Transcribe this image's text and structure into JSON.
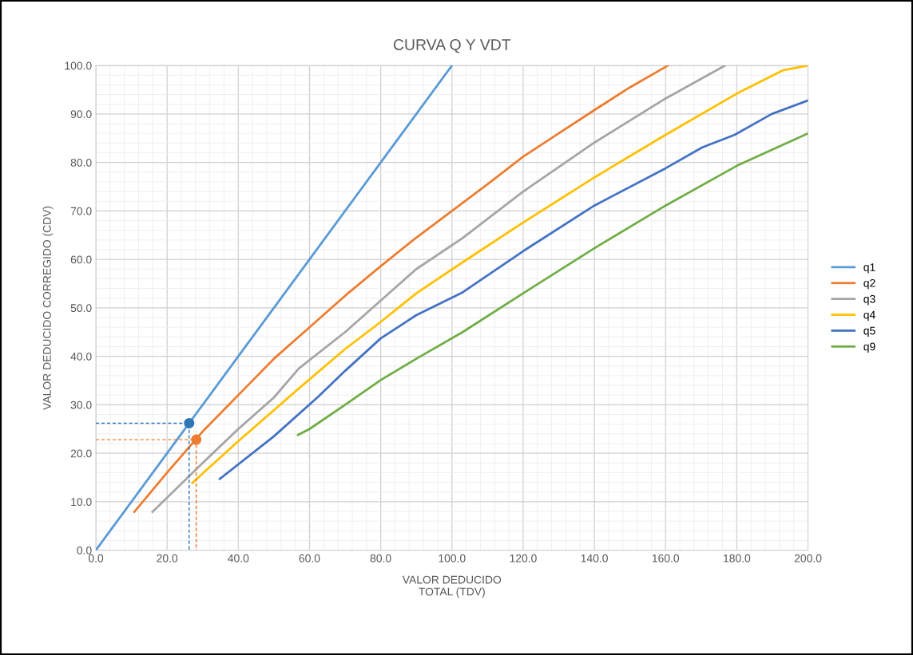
{
  "chart_data": {
    "type": "line",
    "title": "CURVA Q Y VDT",
    "xlabel": "VALOR DEDUCIDO\nTOTAL (TDV)",
    "ylabel": "VALOR DEDUCIDO CORREGIDO (CDV)",
    "xlim": [
      0,
      200
    ],
    "ylim": [
      0,
      100
    ],
    "xticks": [
      {
        "value": 0,
        "label": "0.0"
      },
      {
        "value": 20,
        "label": "20.0"
      },
      {
        "value": 40,
        "label": "40.0"
      },
      {
        "value": 60,
        "label": "60.0"
      },
      {
        "value": 80,
        "label": "80.0"
      },
      {
        "value": 100,
        "label": "100.0"
      },
      {
        "value": 120,
        "label": "120.0"
      },
      {
        "value": 140,
        "label": "140.0"
      },
      {
        "value": 160,
        "label": "160.0"
      },
      {
        "value": 180,
        "label": "180.0"
      },
      {
        "value": 200,
        "label": "200.0"
      }
    ],
    "yticks": [
      {
        "value": 0,
        "label": "0.0"
      },
      {
        "value": 10,
        "label": "10.0"
      },
      {
        "value": 20,
        "label": "20.0"
      },
      {
        "value": 30,
        "label": "30.0"
      },
      {
        "value": 40,
        "label": "40.0"
      },
      {
        "value": 50,
        "label": "50.0"
      },
      {
        "value": 60,
        "label": "60.0"
      },
      {
        "value": 70,
        "label": "70.0"
      },
      {
        "value": 80,
        "label": "80.0"
      },
      {
        "value": 90,
        "label": "90.0"
      },
      {
        "value": 100,
        "label": "100.0"
      }
    ],
    "grid": true,
    "legend": "right",
    "marker": "none",
    "line_style": "solid",
    "series": [
      {
        "name": "q1",
        "color": "#5b9bd5",
        "x": [
          0,
          20,
          40,
          60,
          80,
          100
        ],
        "values": [
          0,
          20,
          40,
          60,
          80,
          100
        ]
      },
      {
        "name": "q2",
        "color": "#ed7d31",
        "x": [
          10.8,
          20,
          30,
          42,
          50,
          60,
          70,
          80,
          90,
          100,
          110,
          120,
          130,
          140,
          150,
          160.7
        ],
        "values": [
          7.9,
          16,
          24.5,
          33.5,
          39.5,
          46,
          52.5,
          58.6,
          64.5,
          70,
          75.5,
          81.2,
          86,
          90.8,
          95.5,
          100
        ]
      },
      {
        "name": "q3",
        "color": "#a5a5a5",
        "x": [
          15.9,
          30,
          40,
          50,
          57,
          70,
          80,
          90,
          103,
          120,
          140,
          160,
          176.7
        ],
        "values": [
          7.9,
          18,
          25,
          31.5,
          37.5,
          45,
          51.5,
          58,
          64.4,
          74,
          84.1,
          93.2,
          100
        ]
      },
      {
        "name": "q4",
        "color": "#ffc000",
        "x": [
          27.1,
          40,
          57.2,
          70,
          80,
          90,
          103,
          120,
          140,
          160,
          180,
          192.9,
          200
        ],
        "values": [
          13.9,
          22.5,
          33.5,
          41.5,
          47.1,
          53,
          59.4,
          67.6,
          76.9,
          85.7,
          94.2,
          99,
          100
        ]
      },
      {
        "name": "q5",
        "color": "#4472c4",
        "x": [
          34.8,
          50,
          62.5,
          70,
          80,
          90,
          103,
          120,
          140,
          160,
          170.3,
          179.4,
          189.8,
          200
        ],
        "values": [
          14.7,
          23.5,
          31.7,
          37,
          43.7,
          48.5,
          53.2,
          61.7,
          71.1,
          78.8,
          83.1,
          85.7,
          90,
          92.8
        ]
      },
      {
        "name": "q9",
        "color": "#70ad47",
        "x": [
          56.8,
          60,
          70,
          80,
          90,
          103,
          120,
          140,
          160,
          180,
          200
        ],
        "values": [
          23.8,
          25,
          30,
          35.1,
          39.5,
          45,
          53,
          62.3,
          71.1,
          79.3,
          86
        ]
      },
      {
        "type": "line",
        "line_style": "dashed",
        "color": "#2e75b6",
        "x": [
          0,
          26.2,
          26.2
        ],
        "values": [
          26.2,
          26.2,
          0
        ]
      },
      {
        "type": "line",
        "line_style": "dashed",
        "color": "#ed7d31",
        "x": [
          0,
          28.2,
          28.2
        ],
        "values": [
          22.8,
          22.8,
          0
        ]
      },
      {
        "type": "scatter",
        "marker": "circle",
        "color": "#2e75b6",
        "x": [
          26.2
        ],
        "values": [
          26.2
        ]
      },
      {
        "type": "scatter",
        "marker": "circle",
        "color": "#ed7d31",
        "x": [
          28.2
        ],
        "values": [
          22.8
        ]
      }
    ]
  }
}
